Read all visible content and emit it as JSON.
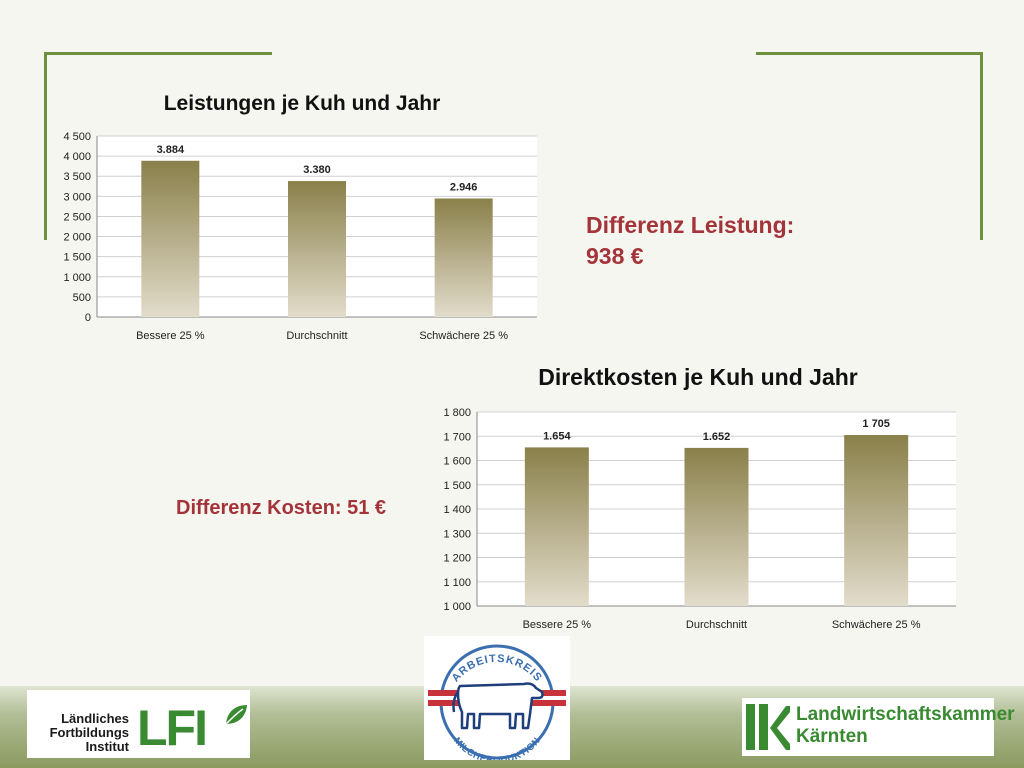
{
  "colors": {
    "accent_green": "#6e8f3d",
    "diff_red": "#a5343a",
    "bar_top": "#8a804a",
    "bar_bottom": "#e2dccb",
    "grid": "#d0d0d0"
  },
  "chart_data": [
    {
      "type": "bar",
      "title": "Leistungen je Kuh und Jahr",
      "categories": [
        "Bessere 25 %",
        "Durchschnitt",
        "Schwächere 25 %"
      ],
      "values": [
        3884,
        3380,
        2946
      ],
      "data_labels": [
        "3.884",
        "3.380",
        "2.946"
      ],
      "ylim": [
        0,
        4500
      ],
      "yticks": [
        0,
        500,
        1000,
        1500,
        2000,
        2500,
        3000,
        3500,
        4000,
        4500
      ],
      "ytick_labels": [
        "0",
        "500",
        "1 000",
        "1 500",
        "2 000",
        "2 500",
        "3 000",
        "3 500",
        "4 000",
        "4 500"
      ],
      "grid": true,
      "legend": "none"
    },
    {
      "type": "bar",
      "title": "Direktkosten je Kuh und Jahr",
      "categories": [
        "Bessere 25 %",
        "Durchschnitt",
        "Schwächere 25 %"
      ],
      "values": [
        1654,
        1652,
        1705
      ],
      "data_labels": [
        "1.654",
        "1.652",
        "1 705"
      ],
      "ylim": [
        1000,
        1800
      ],
      "yticks": [
        1000,
        1100,
        1200,
        1300,
        1400,
        1500,
        1600,
        1700,
        1800
      ],
      "ytick_labels": [
        "1 000",
        "1 100",
        "1 200",
        "1 300",
        "1 400",
        "1 500",
        "1 600",
        "1 700",
        "1 800"
      ],
      "grid": true,
      "legend": "none"
    }
  ],
  "annotations": {
    "diff_leistung_line1": "Differenz Leistung:",
    "diff_leistung_line2": "938 €",
    "diff_kosten": "Differenz Kosten: 51 €"
  },
  "logos": {
    "lfi": {
      "line1": "Ländliches",
      "line2": "Fortbildungs",
      "line3": "Institut",
      "mark": "LFI",
      "icon": "leaf-icon"
    },
    "arbeitskreis": {
      "top_text": "ARBEITSKREIS",
      "bottom_text": "MILCHPRODUKTION",
      "icon": "cow-icon"
    },
    "lk": {
      "line1": "Landwirtschaftskammer",
      "line2": "Kärnten",
      "mark": "lk"
    }
  }
}
